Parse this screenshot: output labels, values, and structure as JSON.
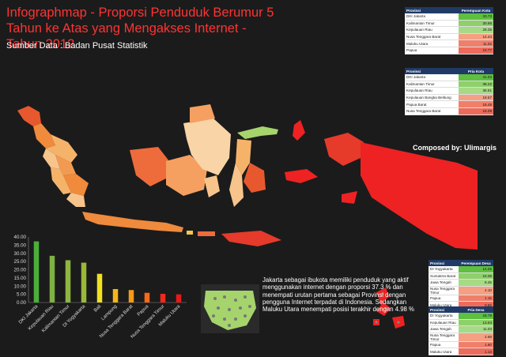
{
  "header": {
    "title": "Infographmap - Proporsi Penduduk Berumur 5 Tahun ke Atas yang Mengakses Internet - Tahun 2012",
    "source": "Sumber Data : Badan Pusat Statistik",
    "composed_by": "Composed by: Ulimargis"
  },
  "tables": [
    {
      "header": [
        "Provinsi",
        "Perempuan Kota"
      ],
      "rows": [
        {
          "name": "DKI Jakarta",
          "value": "33.73",
          "color": "#5fbf3f"
        },
        {
          "name": "Kalimantan Timur",
          "value": "30.66",
          "color": "#8ed06a"
        },
        {
          "name": "Kepulauan Riau",
          "value": "29.35",
          "color": "#a7da86"
        },
        {
          "name": "Nusa Tenggara Barat",
          "value": "14.44",
          "color": "#f5a083"
        },
        {
          "name": "Maluku Utara",
          "value": "11.02",
          "color": "#f07f6a"
        },
        {
          "name": "Papua",
          "value": "10.77",
          "color": "#ee6b5b"
        }
      ]
    },
    {
      "header": [
        "Provinsi",
        "Pria Kota"
      ],
      "rows": [
        {
          "name": "DKI Jakarta",
          "value": "41.03",
          "color": "#5fbf3f"
        },
        {
          "name": "Kalimantan Timur",
          "value": "38.22",
          "color": "#8ed06a"
        },
        {
          "name": "Kepulauan Riau",
          "value": "36.81",
          "color": "#a7da86"
        },
        {
          "name": "Kepulauan Bangka Belitung",
          "value": "18.57",
          "color": "#f5a083"
        },
        {
          "name": "Papua Barat",
          "value": "18.49",
          "color": "#f07f6a"
        },
        {
          "name": "Nusa Tenggara Barat",
          "value": "15.09",
          "color": "#ee6b5b"
        }
      ]
    },
    {
      "header": [
        "Provinsi",
        "Perempuan Desa"
      ],
      "rows": [
        {
          "name": "DI Yogyakarta",
          "value": "14.06",
          "color": "#5fbf3f"
        },
        {
          "name": "Sumatera Barat",
          "value": "10.36",
          "color": "#8ed06a"
        },
        {
          "name": "Jawa Tengah",
          "value": "8.45",
          "color": "#a7da86"
        },
        {
          "name": "Nusa Tenggara Timur",
          "value": "2.10",
          "color": "#f5a083"
        },
        {
          "name": "Papua",
          "value": "1.15",
          "color": "#f07f6a"
        },
        {
          "name": "Maluku Utara",
          "value": "0.82",
          "color": "#ee6b5b"
        }
      ]
    },
    {
      "header": [
        "Provinsi",
        "Pria Desa"
      ],
      "rows": [
        {
          "name": "DI Yogyakarta",
          "value": "18.79",
          "color": "#5fbf3f"
        },
        {
          "name": "Kepulauan Riau",
          "value": "13.53",
          "color": "#8ed06a"
        },
        {
          "name": "Jawa Tengah",
          "value": "11.03",
          "color": "#a7da86"
        },
        {
          "name": "Nusa Tenggara Timur",
          "value": "2.69",
          "color": "#f5a083"
        },
        {
          "name": "Papua",
          "value": "1.60",
          "color": "#f07f6a"
        },
        {
          "name": "Maluku Utara",
          "value": "1.13",
          "color": "#ee6b5b"
        }
      ]
    }
  ],
  "description": "Jakarta sebagai ibukota memiliki penduduk yang aktif menggunakan internet dengan proporsi 37.3 % dan menempati urutan pertama sebagai Provinsi dengan pengguna Internet terpadat di Indonesia. Sedangkan Maluku Utara menempati posisi terakhir dengan 4.98 %",
  "chart_data": {
    "type": "bar",
    "categories": [
      "DKI Jakarta",
      "Kepulauan Riau",
      "Kalimantan Timur",
      "DI Yogyakarta",
      "Bali",
      "Lampung",
      "Nusa Tenggara Barat",
      "Papua",
      "Nusa Tenggara Timur",
      "Maluku Utara"
    ],
    "values": [
      37.3,
      28.5,
      25.8,
      24.3,
      17.5,
      8.2,
      7.6,
      5.9,
      5.3,
      4.98
    ],
    "colors": [
      "#4caf3a",
      "#7fb143",
      "#8fb63f",
      "#9cb838",
      "#f2e020",
      "#f6b41a",
      "#f39a1a",
      "#f46a1a",
      "#ef2a1a",
      "#e81818"
    ],
    "ylim": [
      0,
      40
    ],
    "yticks": [
      "0.00",
      "5.00",
      "10.00",
      "15.00",
      "20.00",
      "25.00",
      "30.00",
      "35.00",
      "40.00"
    ],
    "grid": false
  }
}
